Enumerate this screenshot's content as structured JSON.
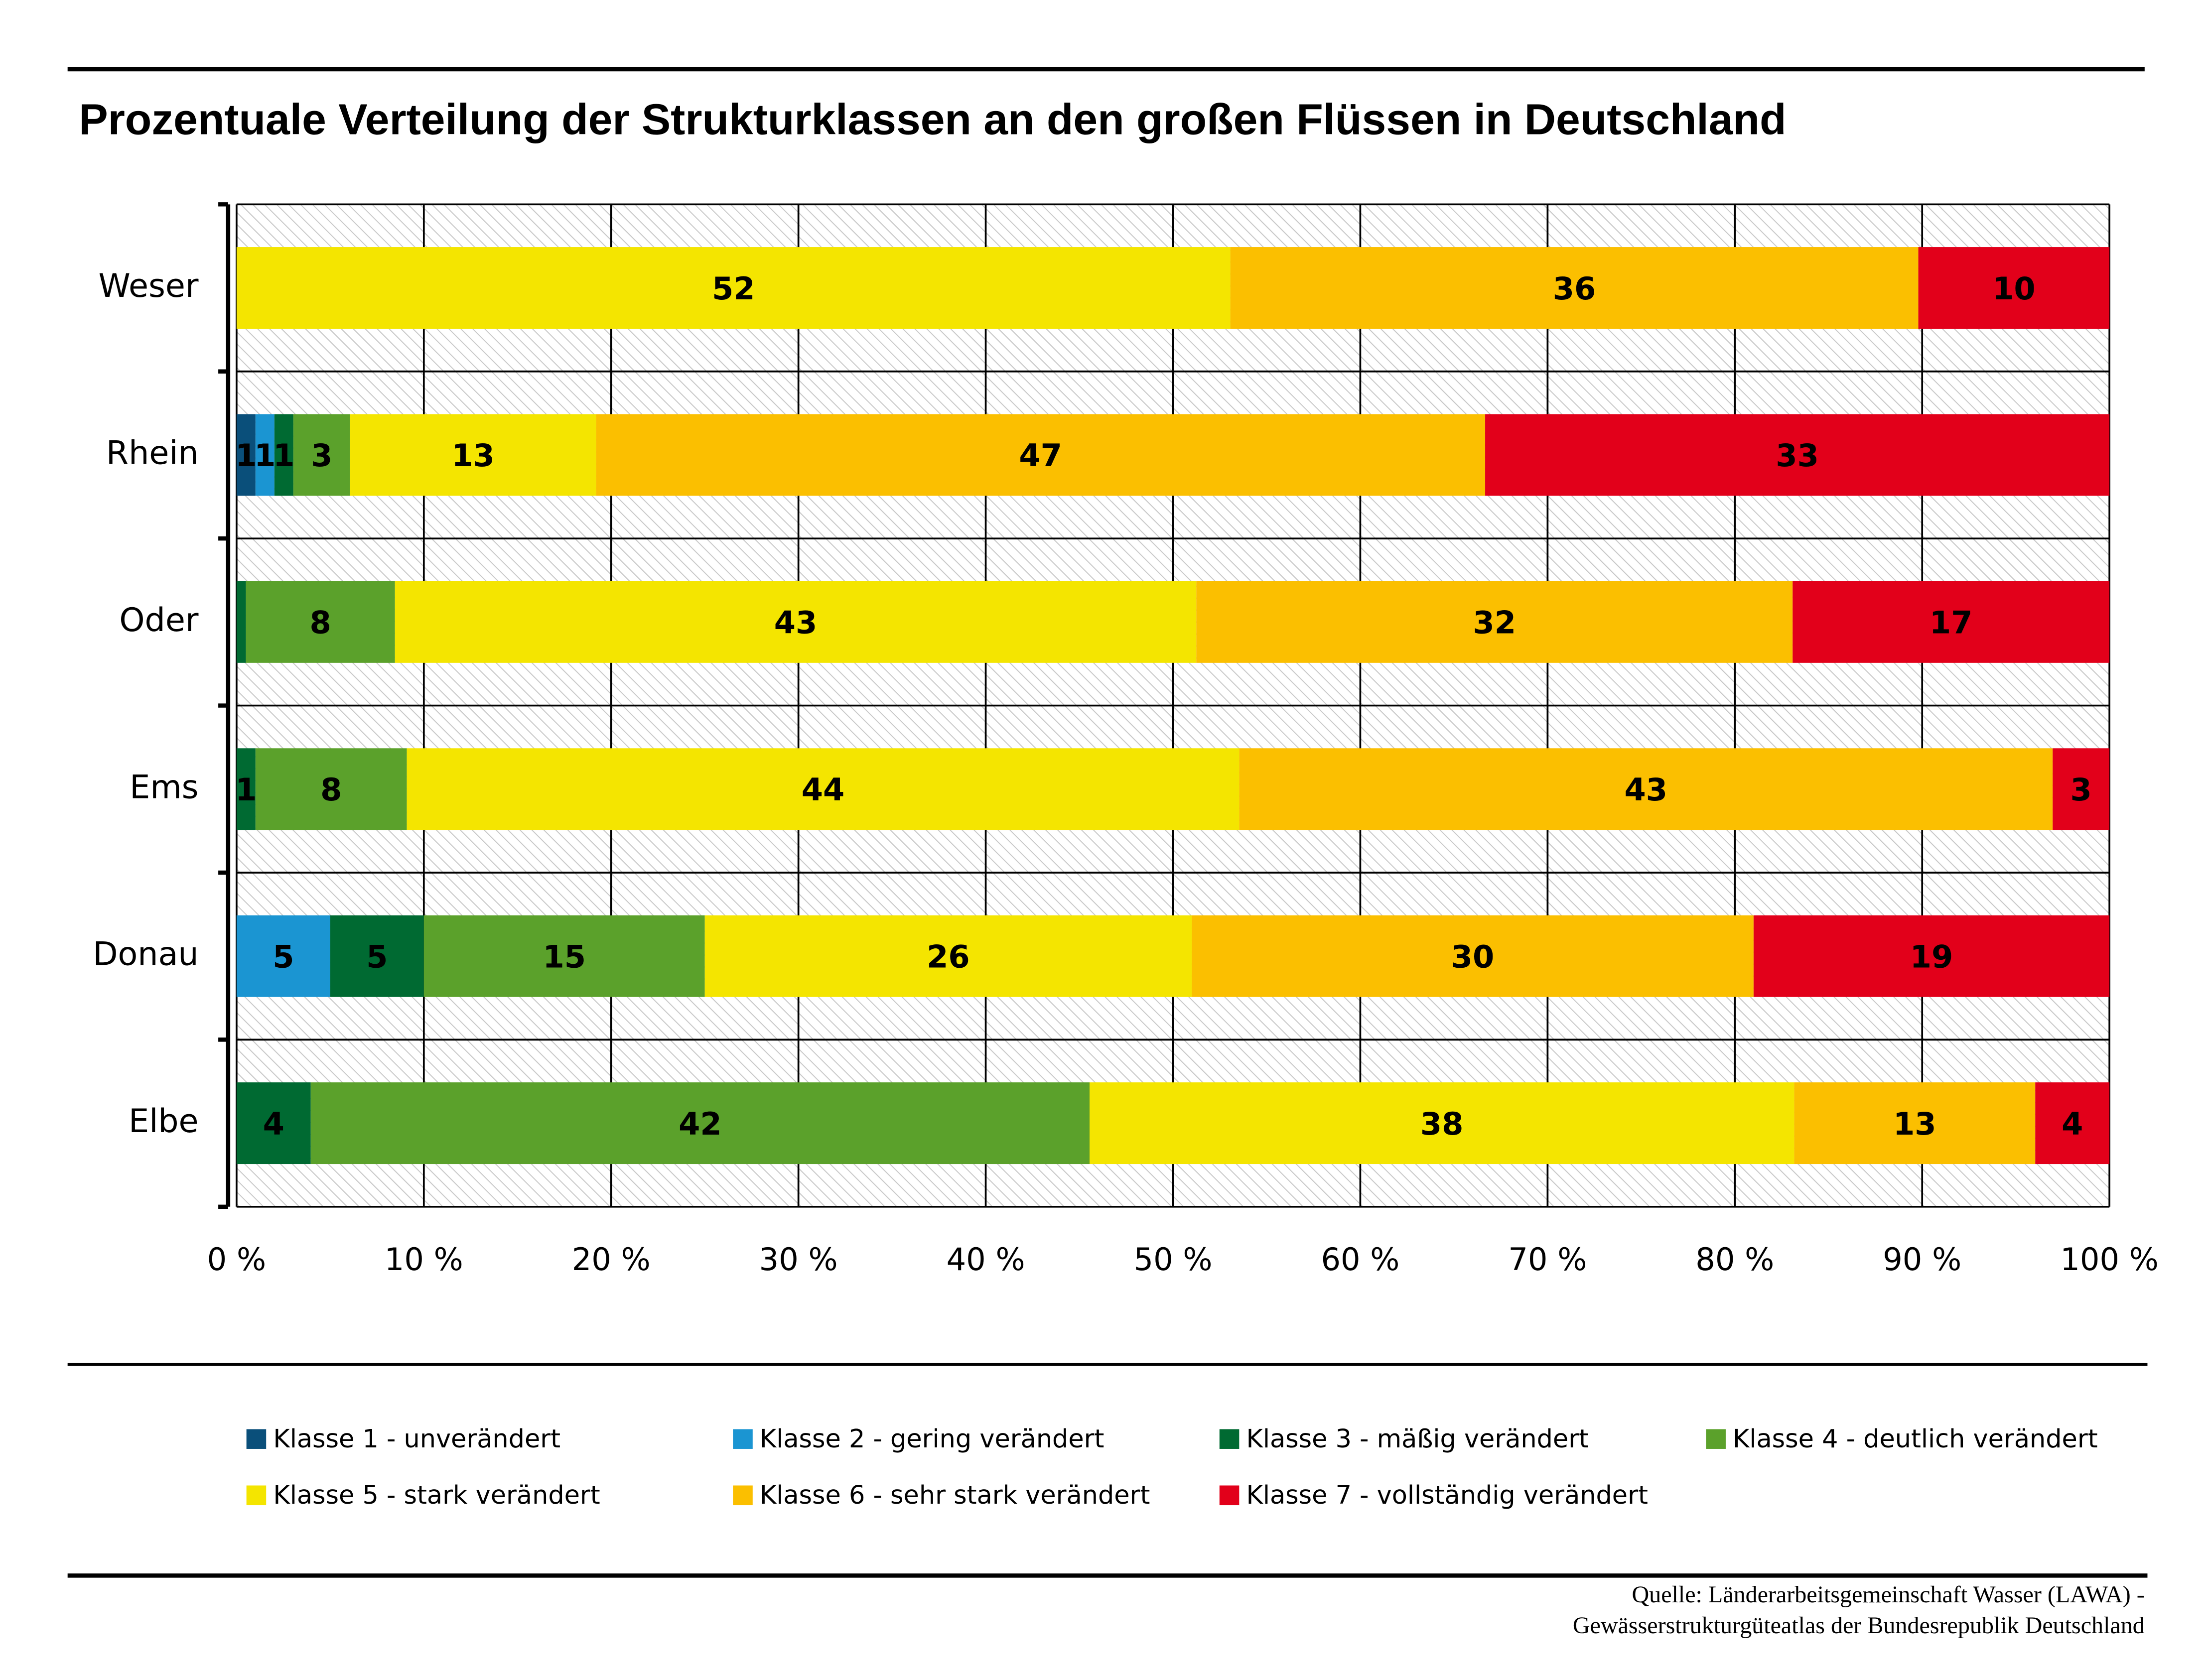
{
  "chart_data": {
    "type": "bar",
    "orientation": "horizontal",
    "stacked": "percent",
    "title": "Prozentuale Verteilung der Strukturklassen an den großen Flüssen in Deutschland",
    "categories": [
      "Weser",
      "Rhein",
      "Oder",
      "Ems",
      "Donau",
      "Elbe"
    ],
    "series": [
      {
        "name": "Klasse 1 - unverändert",
        "color": "#0a4f7a",
        "values": [
          0,
          1,
          0,
          0,
          0,
          0
        ]
      },
      {
        "name": "Klasse 2 - gering verändert",
        "color": "#1b95d2",
        "values": [
          0,
          1,
          0,
          0,
          5,
          0
        ]
      },
      {
        "name": "Klasse 3 - mäßig verändert",
        "color": "#006a32",
        "values": [
          0,
          1,
          0.5,
          1,
          5,
          4
        ]
      },
      {
        "name": "Klasse 4 - deutlich verändert",
        "color": "#5ba12b",
        "values": [
          0,
          3,
          8,
          8,
          15,
          42
        ]
      },
      {
        "name": "Klasse 5 - stark verändert",
        "color": "#f4e500",
        "values": [
          52,
          13,
          43,
          44,
          26,
          38
        ]
      },
      {
        "name": "Klasse 6 - sehr stark verändert",
        "color": "#fbbf00",
        "values": [
          36,
          47,
          32,
          43,
          30,
          13
        ]
      },
      {
        "name": "Klasse 7 - vollständig verändert",
        "color": "#e2001a",
        "values": [
          10,
          33,
          17,
          3,
          19,
          4
        ]
      }
    ],
    "xlim": [
      0,
      100
    ],
    "xticks": [
      {
        "value": 0,
        "label": "0 %"
      },
      {
        "value": 10,
        "label": "10 %"
      },
      {
        "value": 20,
        "label": "20 %"
      },
      {
        "value": 30,
        "label": "30 %"
      },
      {
        "value": 40,
        "label": "40 %"
      },
      {
        "value": 50,
        "label": "50 %"
      },
      {
        "value": 60,
        "label": "60 %"
      },
      {
        "value": 70,
        "label": "70 %"
      },
      {
        "value": 80,
        "label": "80 %"
      },
      {
        "value": 90,
        "label": "90 %"
      },
      {
        "value": 100,
        "label": "100 %"
      }
    ],
    "grid": true,
    "legend": "bottom",
    "source": [
      "Quelle: Länderarbeitsgemeinschaft Wasser (LAWA) -",
      "Gewässerstrukturgüteatlas der Bundesrepublik Deutschland"
    ]
  }
}
